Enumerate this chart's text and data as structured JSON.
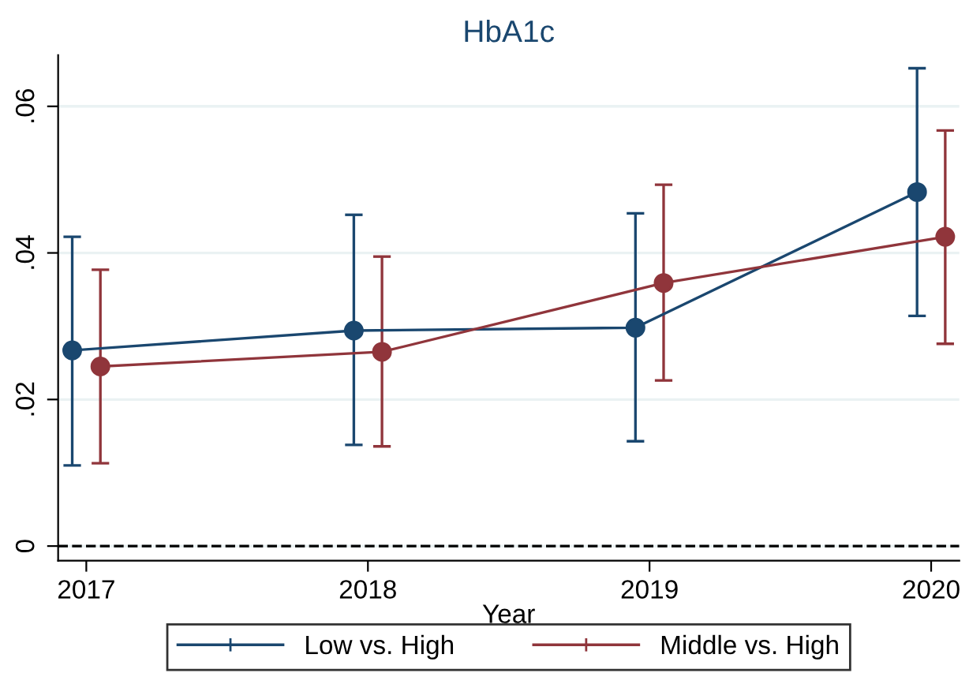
{
  "chart_data": {
    "type": "line",
    "title": "HbA1c",
    "xlabel": "Year",
    "xlim": [
      2016.9,
      2020.1
    ],
    "xticks": [
      2017,
      2018,
      2019,
      2020
    ],
    "ylim": [
      -0.002,
      0.067
    ],
    "yticks": [
      {
        "value": 0,
        "label": "0"
      },
      {
        "value": 0.02,
        "label": ".02"
      },
      {
        "value": 0.04,
        "label": ".04"
      },
      {
        "value": 0.06,
        "label": ".06"
      }
    ],
    "series": [
      {
        "name": "Low vs. High",
        "color": "#1a476f",
        "x": [
          2016.95,
          2017.95,
          2018.95,
          2019.95
        ],
        "values": [
          0.0267,
          0.0294,
          0.0298,
          0.0483
        ],
        "errors": [
          [
            0.011,
            0.0422
          ],
          [
            0.0138,
            0.0452
          ],
          [
            0.0143,
            0.0454
          ],
          [
            0.0314,
            0.0652
          ]
        ]
      },
      {
        "name": "Middle vs. High",
        "color": "#90353b",
        "x": [
          2017.05,
          2018.05,
          2019.05,
          2020.05
        ],
        "values": [
          0.0245,
          0.0265,
          0.0359,
          0.0422
        ],
        "errors": [
          [
            0.0113,
            0.0377
          ],
          [
            0.0136,
            0.0395
          ],
          [
            0.0226,
            0.0493
          ],
          [
            0.0276,
            0.0567
          ]
        ]
      }
    ],
    "ref_lines": [
      {
        "axis": "y",
        "value": 0,
        "color": "#000000",
        "line_style": "dashed"
      }
    ],
    "grid": "y",
    "legend": "bottom",
    "marker": "circle",
    "line_style": "solid"
  }
}
